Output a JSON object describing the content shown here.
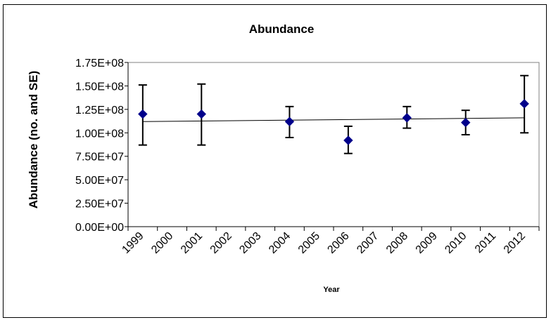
{
  "chart_data": {
    "type": "scatter",
    "title": "Abundance",
    "xlabel": "Year",
    "ylabel": "Abundance (no. and SE)",
    "categories": [
      "1999",
      "2000",
      "2001",
      "2002",
      "2003",
      "2004",
      "2005",
      "2006",
      "2007",
      "2008",
      "2009",
      "2010",
      "2011",
      "2012"
    ],
    "y_ticks": [
      "0.00E+00",
      "2.50E+07",
      "5.00E+07",
      "7.50E+07",
      "1.00E+08",
      "1.25E+08",
      "1.50E+08",
      "1.75E+08"
    ],
    "ylim": [
      0,
      175000000
    ],
    "grid": false,
    "legend": "none",
    "series": [
      {
        "marker": "diamond",
        "color": "#00008B",
        "points": [
          {
            "x": "1999",
            "y": 120000000,
            "err_low": 87000000,
            "err_high": 151000000
          },
          {
            "x": "2001",
            "y": 120000000,
            "err_low": 87000000,
            "err_high": 152000000
          },
          {
            "x": "2004",
            "y": 112000000,
            "err_low": 95000000,
            "err_high": 128000000
          },
          {
            "x": "2006",
            "y": 92000000,
            "err_low": 78000000,
            "err_high": 107000000
          },
          {
            "x": "2008",
            "y": 116000000,
            "err_low": 105000000,
            "err_high": 128000000
          },
          {
            "x": "2010",
            "y": 111000000,
            "err_low": 98000000,
            "err_high": 124000000
          },
          {
            "x": "2012",
            "y": 131000000,
            "err_low": 100000000,
            "err_high": 161000000
          }
        ]
      }
    ],
    "trendline": {
      "type": "linear",
      "start": {
        "x": "1999",
        "y": 112000000
      },
      "end": {
        "x": "2012",
        "y": 116000000
      },
      "color": "#000000"
    }
  }
}
